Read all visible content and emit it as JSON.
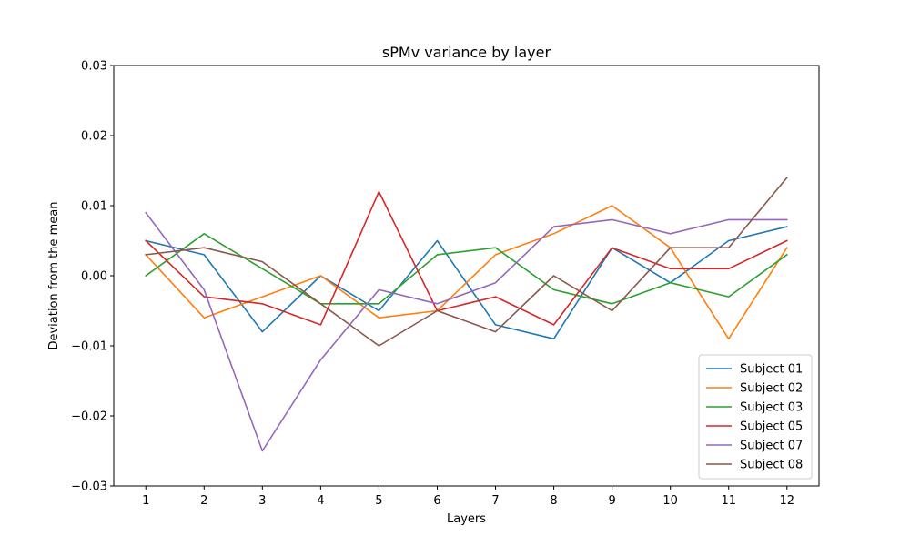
{
  "chart_data": {
    "type": "line",
    "title": "sPMv variance by layer",
    "xlabel": "Layers",
    "ylabel": "Deviation from the mean",
    "x": [
      1,
      2,
      3,
      4,
      5,
      6,
      7,
      8,
      9,
      10,
      11,
      12
    ],
    "x_tick_labels": [
      "1",
      "2",
      "3",
      "4",
      "5",
      "6",
      "7",
      "8",
      "9",
      "10",
      "11",
      "12"
    ],
    "xlim": [
      0.45,
      12.55
    ],
    "ylim": [
      -0.03,
      0.03
    ],
    "y_ticks": [
      -0.03,
      -0.02,
      -0.01,
      0.0,
      0.01,
      0.02,
      0.03
    ],
    "y_tick_labels": [
      "−0.03",
      "−0.02",
      "−0.01",
      "0.00",
      "0.01",
      "0.02",
      "0.03"
    ],
    "grid": false,
    "legend_position": "lower-right",
    "series": [
      {
        "name": "Subject 01",
        "color": "#1f77b4",
        "values": [
          0.005,
          0.003,
          -0.008,
          0.0,
          -0.005,
          0.005,
          -0.007,
          -0.009,
          0.004,
          -0.001,
          0.005,
          0.007
        ]
      },
      {
        "name": "Subject 02",
        "color": "#ff7f0e",
        "values": [
          0.003,
          -0.006,
          -0.003,
          0.0,
          -0.006,
          -0.005,
          0.003,
          0.006,
          0.01,
          0.004,
          -0.009,
          0.004
        ]
      },
      {
        "name": "Subject 03",
        "color": "#2ca02c",
        "values": [
          0.0,
          0.006,
          0.001,
          -0.004,
          -0.004,
          0.003,
          0.004,
          -0.002,
          -0.004,
          -0.001,
          -0.003,
          0.003
        ]
      },
      {
        "name": "Subject 05",
        "color": "#d62728",
        "values": [
          0.005,
          -0.003,
          -0.004,
          -0.007,
          0.012,
          -0.005,
          -0.003,
          -0.007,
          0.004,
          0.001,
          0.001,
          0.005
        ]
      },
      {
        "name": "Subject 07",
        "color": "#9467bd",
        "values": [
          0.009,
          -0.002,
          -0.025,
          -0.012,
          -0.002,
          -0.004,
          -0.001,
          0.007,
          0.008,
          0.006,
          0.008,
          0.008
        ]
      },
      {
        "name": "Subject 08",
        "color": "#8c564b",
        "values": [
          0.003,
          0.004,
          0.002,
          -0.004,
          -0.01,
          -0.005,
          -0.008,
          0.0,
          -0.005,
          0.004,
          0.004,
          0.014
        ]
      }
    ]
  }
}
